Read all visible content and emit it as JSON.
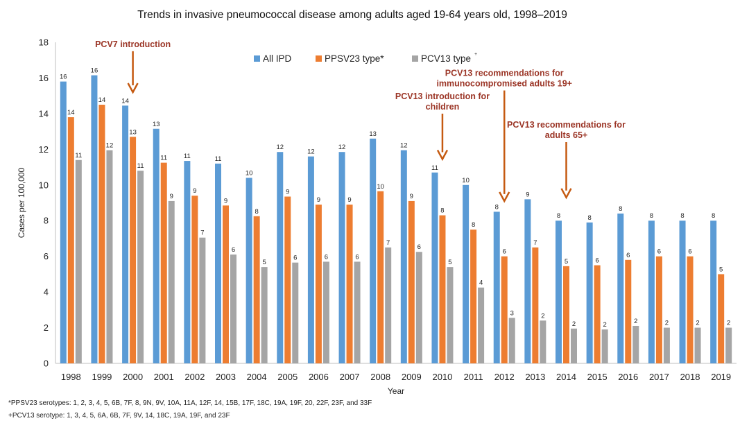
{
  "chart_data": {
    "type": "bar",
    "title": "Trends in invasive pneumococcal disease among adults aged 19-64 years old, 1998–2019",
    "xlabel": "Year",
    "ylabel": "Cases per 100,000",
    "ylim": [
      0,
      18
    ],
    "yticks": [
      0,
      2,
      4,
      6,
      8,
      10,
      12,
      14,
      16,
      18
    ],
    "grid": false,
    "legend_position": "top-center",
    "categories": [
      "1998",
      "1999",
      "2000",
      "2001",
      "2002",
      "2003",
      "2004",
      "2005",
      "2006",
      "2007",
      "2008",
      "2009",
      "2010",
      "2011",
      "2012",
      "2013",
      "2014",
      "2015",
      "2016",
      "2017",
      "2018",
      "2019"
    ],
    "series": [
      {
        "name": "All IPD",
        "color": "#5B9BD5",
        "values": [
          15.8,
          16.15,
          14.45,
          13.15,
          11.35,
          11.2,
          10.4,
          11.85,
          11.6,
          11.85,
          12.6,
          11.95,
          10.7,
          10.0,
          8.5,
          9.2,
          8.0,
          7.9,
          8.4,
          8.0,
          8.0,
          8.0
        ],
        "labels": [
          "16",
          "16",
          "14",
          "13",
          "11",
          "11",
          "10",
          "12",
          "12",
          "12",
          "13",
          "12",
          "11",
          "10",
          "8",
          "9",
          "8",
          "8",
          "8",
          "8",
          "8",
          "8"
        ]
      },
      {
        "name": "PPSV23 type*",
        "color": "#ED7D31",
        "values": [
          13.8,
          14.5,
          12.7,
          11.25,
          9.4,
          8.85,
          8.25,
          9.35,
          8.9,
          8.9,
          9.65,
          9.1,
          8.3,
          7.5,
          6.0,
          6.5,
          5.45,
          5.5,
          5.8,
          6.0,
          6.0,
          5.0
        ],
        "labels": [
          "14",
          "14",
          "13",
          "11",
          "9",
          "9",
          "8",
          "9",
          "9",
          "9",
          "10",
          "9",
          "8",
          "8",
          "6",
          "7",
          "5",
          "6",
          "6",
          "6",
          "6",
          "5"
        ]
      },
      {
        "name": "PCV13 type",
        "color": "#A5A5A5",
        "values": [
          11.4,
          11.95,
          10.8,
          9.1,
          7.05,
          6.1,
          5.4,
          5.65,
          5.7,
          5.7,
          6.5,
          6.25,
          5.4,
          4.25,
          2.55,
          2.4,
          1.95,
          1.9,
          2.1,
          2.0,
          2.0,
          2.0
        ],
        "labels": [
          "11",
          "12",
          "11",
          "9",
          "7",
          "6",
          "5",
          "6",
          "6",
          "6",
          "7",
          "6",
          "5",
          "4",
          "3",
          "2",
          "2",
          "2",
          "2",
          "2",
          "2",
          "2"
        ]
      }
    ],
    "legend_pcv13_superscript": "+",
    "annotation_color": "#9B3526",
    "arrow_color": "#C55A11",
    "annotations": [
      {
        "lines": [
          "PCV7 introduction"
        ],
        "category": "2000",
        "arrow_from": 17.5,
        "arrow_to": 15.2
      },
      {
        "lines": [
          "PCV13 introduction for",
          "children"
        ],
        "category": "2010",
        "arrow_from": 14.0,
        "arrow_to": 11.45
      },
      {
        "lines": [
          "PCV13 recommendations for",
          "immunocompromised adults 19+"
        ],
        "category": "2012",
        "arrow_from": 15.3,
        "arrow_to": 9.1
      },
      {
        "lines": [
          "PCV13 recommendations for",
          "adults 65+"
        ],
        "category": "2014",
        "arrow_from": 12.4,
        "arrow_to": 9.3
      }
    ]
  },
  "footnotes": [
    "*PPSV23 serotypes: 1, 2, 3, 4, 5, 6B, 7F, 8, 9N, 9V, 10A, 11A, 12F, 14, 15B, 17F, 18C, 19A, 19F, 20, 22F, 23F, and 33F",
    "+PCV13 serotype: 1, 3, 4, 5, 6A, 6B, 7F, 9V, 14, 18C, 19A, 19F, and 23F"
  ]
}
